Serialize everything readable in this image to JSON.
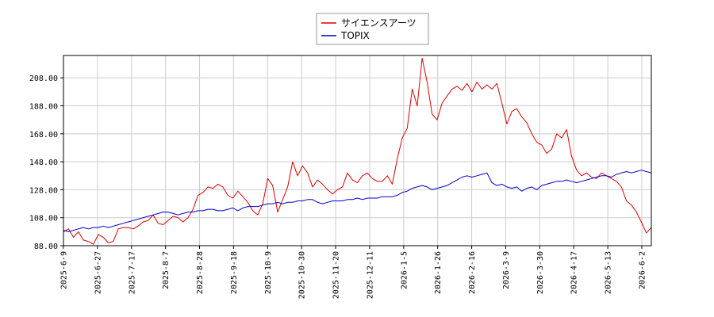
{
  "chart_data": {
    "type": "line",
    "title": "",
    "xlabel": "",
    "ylabel": "",
    "ylim": [
      88,
      224
    ],
    "grid": true,
    "legend_position": "top-center",
    "y_ticks": [
      "88.00",
      "108.00",
      "128.00",
      "148.00",
      "168.00",
      "188.00",
      "208.00"
    ],
    "x_ticks": [
      "2025-6-9",
      "2025-6-27",
      "2025-7-17",
      "2025-8-7",
      "2025-8-28",
      "2025-9-18",
      "2025-10-9",
      "2025-10-30",
      "2025-11-20",
      "2025-12-11",
      "2026-1-5",
      "2026-1-26",
      "2026-2-16",
      "2026-3-9",
      "2026-3-30",
      "2026-4-17",
      "2026-5-13",
      "2026-6-2"
    ],
    "series": [
      {
        "name": "サイエンスアーツ",
        "color": "#dd0000",
        "values": [
          98,
          100,
          94,
          98,
          92,
          91,
          89,
          96,
          94,
          90,
          91,
          100,
          101,
          101,
          100,
          102,
          105,
          106,
          110,
          104,
          103,
          106,
          109,
          108,
          105,
          108,
          114,
          124,
          126,
          130,
          129,
          132,
          130,
          124,
          122,
          127,
          123,
          119,
          113,
          110,
          118,
          136,
          131,
          112,
          121,
          130,
          148,
          138,
          145,
          140,
          130,
          135,
          132,
          128,
          125,
          128,
          130,
          140,
          135,
          133,
          138,
          140,
          136,
          134,
          134,
          138,
          132,
          150,
          165,
          172,
          200,
          188,
          222,
          205,
          182,
          178,
          190,
          195,
          200,
          202,
          199,
          204,
          198,
          205,
          200,
          203,
          200,
          204,
          190,
          175,
          184,
          186,
          180,
          176,
          168,
          162,
          160,
          154,
          157,
          168,
          165,
          171,
          152,
          142,
          138,
          140,
          137,
          136,
          140,
          138,
          136,
          134,
          130,
          120,
          117,
          112,
          105,
          97,
          101
        ]
      },
      {
        "name": "TOPIX",
        "color": "#0000cc",
        "values": [
          99,
          98,
          99,
          100,
          101,
          100,
          101,
          101,
          102,
          101,
          102,
          103,
          104,
          105,
          106,
          107,
          108,
          109,
          110,
          111,
          112,
          112,
          111,
          110,
          111,
          112,
          112,
          113,
          113,
          114,
          114,
          113,
          113,
          114,
          115,
          113,
          115,
          116,
          116,
          116,
          117,
          118,
          118,
          119,
          118,
          119,
          119,
          120,
          120,
          121,
          121,
          119,
          118,
          119,
          120,
          120,
          120,
          121,
          121,
          122,
          121,
          122,
          122,
          122,
          123,
          123,
          123,
          124,
          126,
          127,
          129,
          130,
          131,
          130,
          128,
          129,
          130,
          131,
          133,
          135,
          137,
          138,
          137,
          138,
          139,
          140,
          133,
          131,
          132,
          130,
          129,
          130,
          127,
          129,
          130,
          128,
          131,
          132,
          133,
          134,
          134,
          135,
          134,
          133,
          134,
          135,
          136,
          137,
          138,
          138,
          137,
          139,
          140,
          141,
          140,
          141,
          142,
          141,
          140
        ]
      }
    ]
  }
}
